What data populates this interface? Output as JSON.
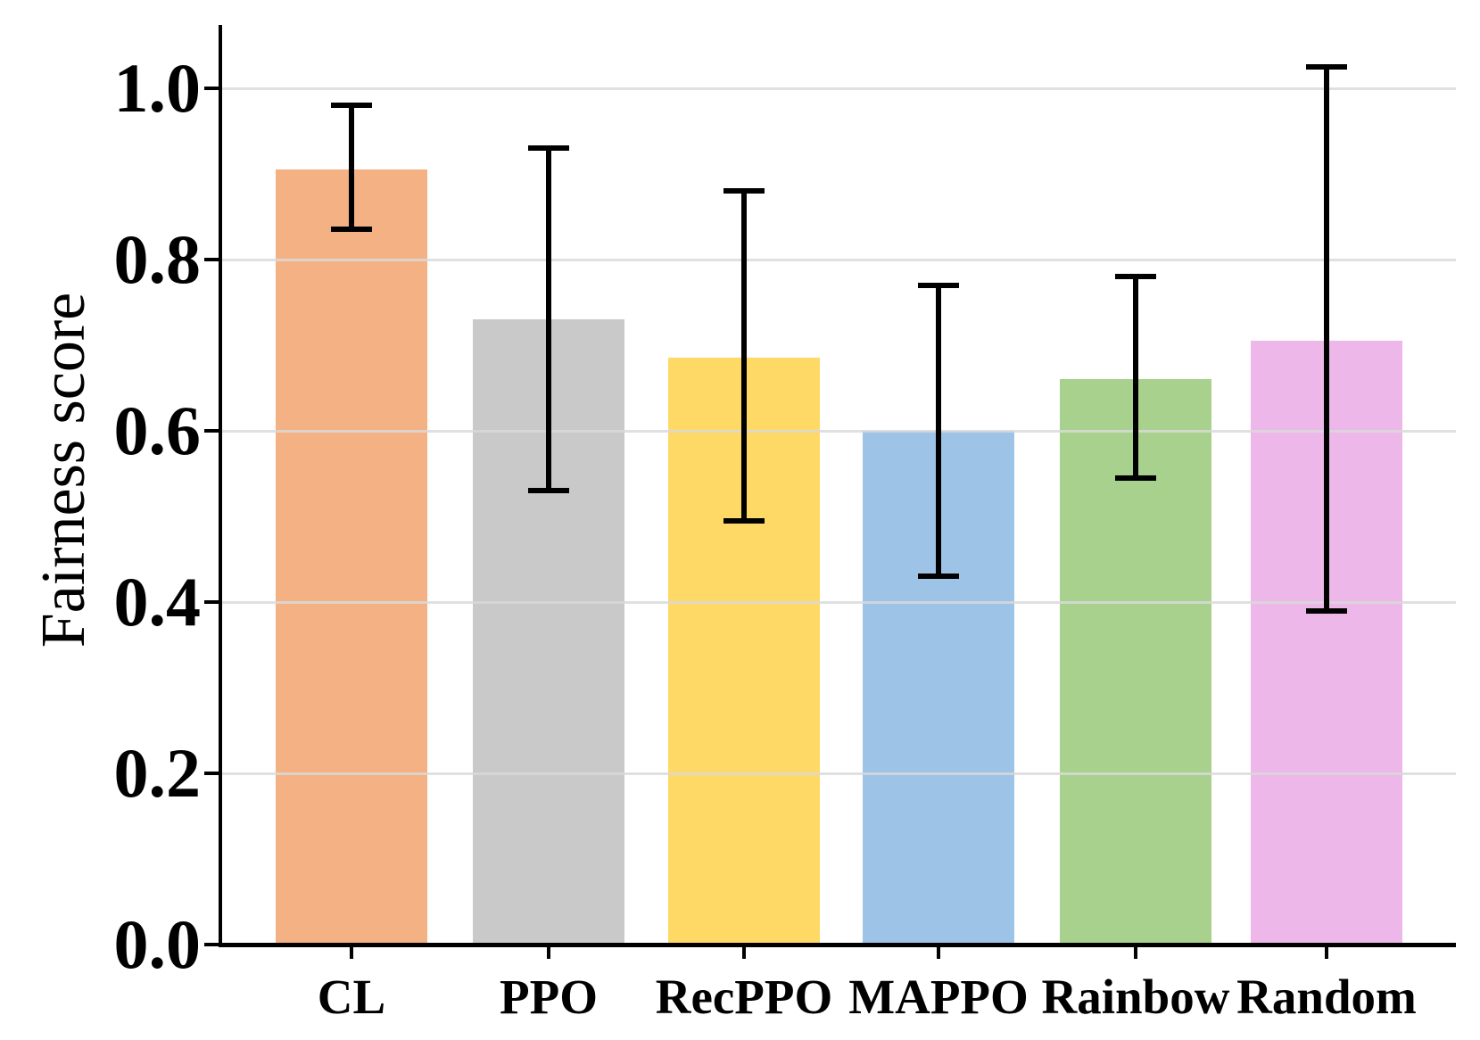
{
  "figure": {
    "background": "#ffffff"
  },
  "chart_data": {
    "type": "bar",
    "title": "",
    "xlabel": "",
    "ylabel": "Fairness score",
    "categories": [
      "CL",
      "PPO",
      "RecPPO",
      "MAPPO",
      "Rainbow",
      "Random"
    ],
    "series": [
      {
        "name": "Fairness score",
        "values": [
          0.905,
          0.73,
          0.685,
          0.6,
          0.66,
          0.705
        ],
        "error_low": [
          0.835,
          0.53,
          0.495,
          0.43,
          0.545,
          0.39
        ],
        "error_high": [
          0.98,
          0.93,
          0.88,
          0.77,
          0.78,
          1.025
        ]
      }
    ],
    "bar_colors": [
      "#F4B183",
      "#C9C9C9",
      "#FFD966",
      "#9DC3E6",
      "#A9D18E",
      "#EDB7EA"
    ],
    "error_bar_color": "#000000",
    "yticks": [
      0.0,
      0.2,
      0.4,
      0.6,
      0.8,
      1.0
    ],
    "ytick_labels": [
      "0.0",
      "0.2",
      "0.4",
      "0.6",
      "0.8",
      "1.0"
    ],
    "ylim": [
      0.0,
      1.07
    ],
    "grid": "horizontal",
    "grid_color": "#D9D9D9",
    "axis_color": "#000000",
    "legend_position": "none"
  }
}
